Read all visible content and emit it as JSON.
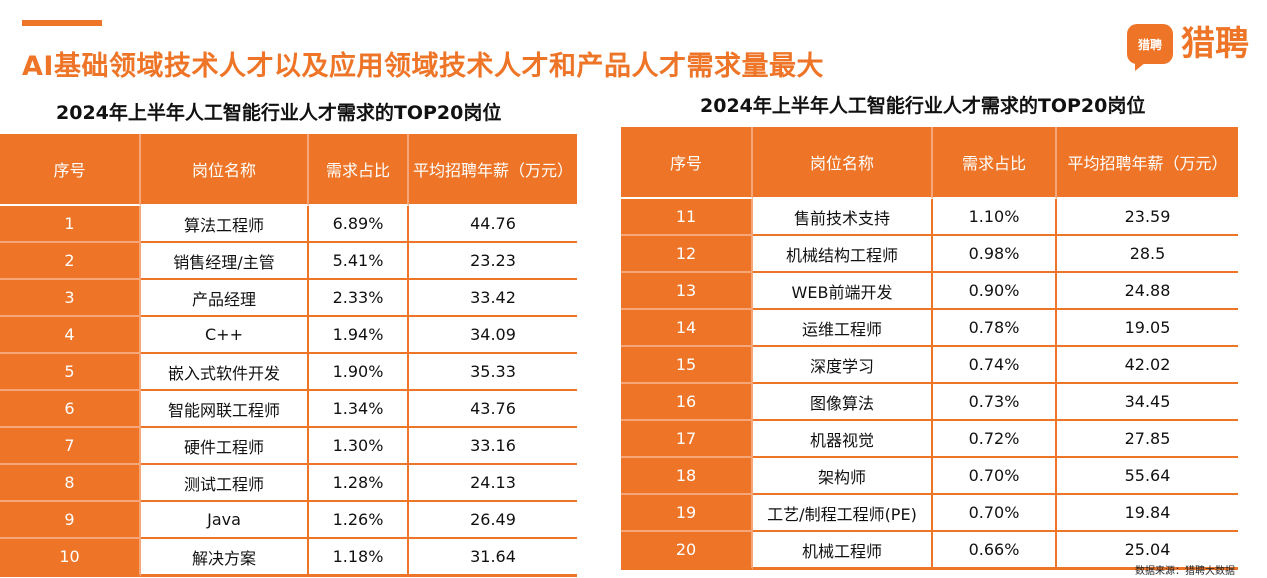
{
  "headline": "AI基础领域技术人才以及应用领域技术人才和产品人才需求量最大",
  "brand": {
    "mark_text": "猎聘",
    "name": "猎聘"
  },
  "left_panel": {
    "title": "2024年上半年人工智能行业人才需求的TOP20岗位",
    "headers": [
      "序号",
      "岗位名称",
      "需求占比",
      "平均招聘年薪（万元）"
    ],
    "rows": [
      [
        "1",
        "算法工程师",
        "6.89%",
        "44.76"
      ],
      [
        "2",
        "销售经理/主管",
        "5.41%",
        "23.23"
      ],
      [
        "3",
        "产品经理",
        "2.33%",
        "33.42"
      ],
      [
        "4",
        "C++",
        "1.94%",
        "34.09"
      ],
      [
        "5",
        "嵌入式软件开发",
        "1.90%",
        "35.33"
      ],
      [
        "6",
        "智能网联工程师",
        "1.34%",
        "43.76"
      ],
      [
        "7",
        "硬件工程师",
        "1.30%",
        "33.16"
      ],
      [
        "8",
        "测试工程师",
        "1.28%",
        "24.13"
      ],
      [
        "9",
        "Java",
        "1.26%",
        "26.49"
      ],
      [
        "10",
        "解决方案",
        "1.18%",
        "31.64"
      ]
    ]
  },
  "right_panel": {
    "title": "2024年上半年人工智能行业人才需求的TOP20岗位",
    "headers": [
      "序号",
      "岗位名称",
      "需求占比",
      "平均招聘年薪（万元）"
    ],
    "rows": [
      [
        "11",
        "售前技术支持",
        "1.10%",
        "23.59"
      ],
      [
        "12",
        "机械结构工程师",
        "0.98%",
        "28.5"
      ],
      [
        "13",
        "WEB前端开发",
        "0.90%",
        "24.88"
      ],
      [
        "14",
        "运维工程师",
        "0.78%",
        "19.05"
      ],
      [
        "15",
        "深度学习",
        "0.74%",
        "42.02"
      ],
      [
        "16",
        "图像算法",
        "0.73%",
        "34.45"
      ],
      [
        "17",
        "机器视觉",
        "0.72%",
        "27.85"
      ],
      [
        "18",
        "架构师",
        "0.70%",
        "55.64"
      ],
      [
        "19",
        "工艺/制程工程师(PE)",
        "0.70%",
        "19.84"
      ],
      [
        "20",
        "机械工程师",
        "0.66%",
        "25.04"
      ]
    ]
  },
  "source": "数据来源：猎聘大数据",
  "colors": {
    "accent": "#ee7527",
    "header_divider": "#f5a77a",
    "background": "#ffffff"
  }
}
